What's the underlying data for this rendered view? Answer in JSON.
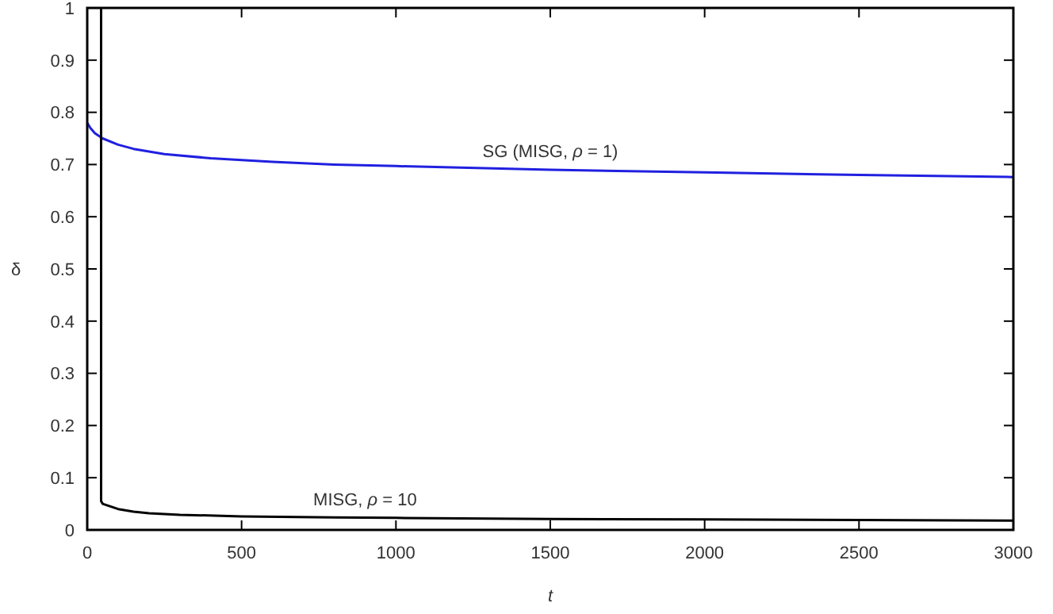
{
  "chart_data": {
    "type": "line",
    "xlabel": "t",
    "ylabel": "δ",
    "xlim": [
      0,
      3000
    ],
    "ylim": [
      0,
      1
    ],
    "xticks": [
      0,
      500,
      1000,
      1500,
      2000,
      2500,
      3000
    ],
    "yticks": [
      0,
      0.1,
      0.2,
      0.3,
      0.4,
      0.5,
      0.6,
      0.7,
      0.8,
      0.9,
      1
    ],
    "grid": false,
    "series": [
      {
        "name": "SG (MISG,  ρ = 1)",
        "color": "#2020e0",
        "x": [
          0,
          10,
          25,
          50,
          100,
          150,
          250,
          400,
          600,
          800,
          1000,
          1500,
          2000,
          2500,
          3000
        ],
        "values": [
          0.78,
          0.77,
          0.76,
          0.75,
          0.738,
          0.73,
          0.72,
          0.712,
          0.705,
          0.7,
          0.697,
          0.69,
          0.685,
          0.68,
          0.676
        ]
      },
      {
        "name": "MISG,  ρ = 10",
        "color": "#000000",
        "x": [
          45,
          45,
          50,
          75,
          100,
          150,
          200,
          300,
          500,
          800,
          1000,
          1500,
          2000,
          2500,
          3000
        ],
        "values": [
          1,
          0.055,
          0.05,
          0.045,
          0.04,
          0.035,
          0.032,
          0.029,
          0.026,
          0.024,
          0.023,
          0.021,
          0.02,
          0.019,
          0.018
        ]
      }
    ]
  }
}
